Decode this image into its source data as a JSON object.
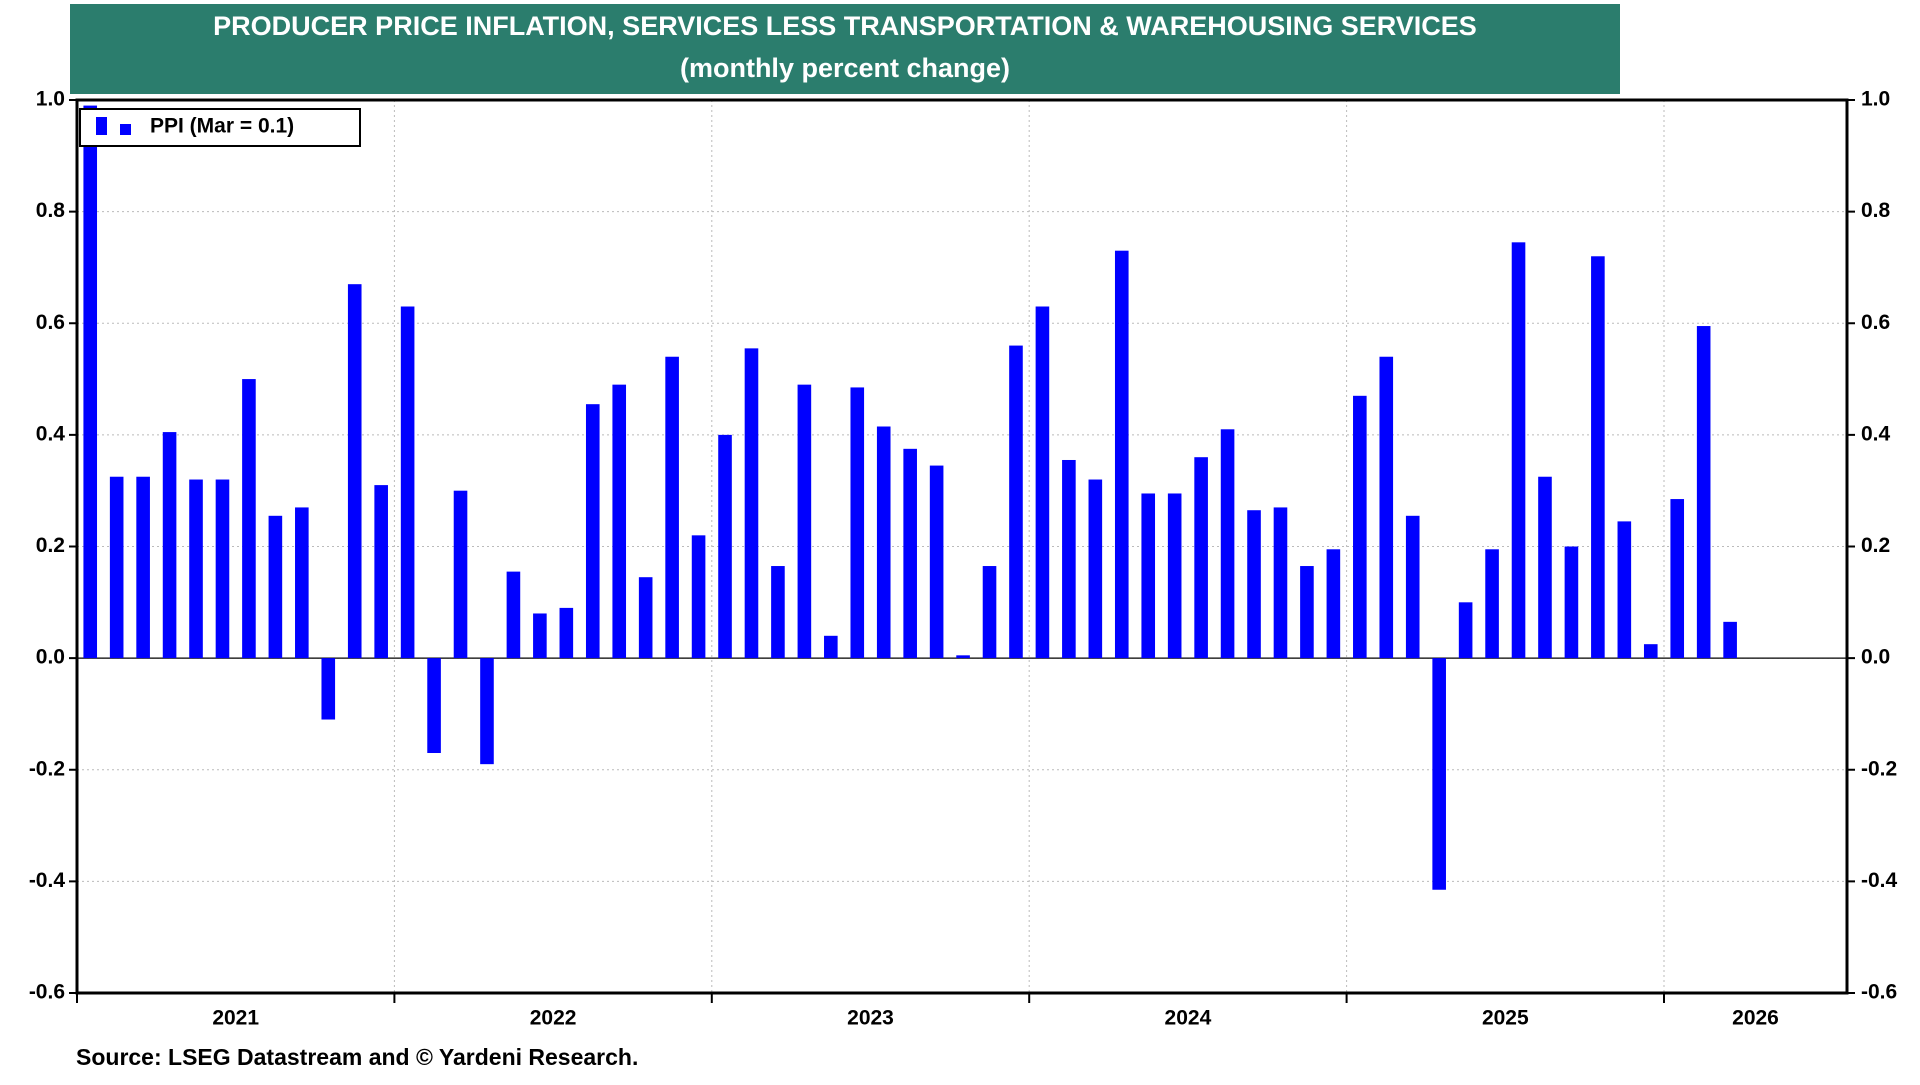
{
  "chart_data": {
    "type": "bar",
    "title": "PRODUCER PRICE INFLATION, SERVICES LESS TRANSPORTATION & WAREHOUSING SERVICES",
    "subtitle": "(monthly percent change)",
    "source": "Source: LSEG Datastream and © Yardeni Research.",
    "x_labels": [
      "2021",
      "2022",
      "2023",
      "2024",
      "2025",
      "2026"
    ],
    "series": [
      {
        "name": "PPI (Mar = 0.1)",
        "color": "#0000ff",
        "values": [
          0.99,
          0.325,
          0.325,
          0.405,
          0.32,
          0.32,
          0.5,
          0.255,
          0.27,
          -0.11,
          0.67,
          0.31,
          0.63,
          -0.17,
          0.3,
          -0.19,
          0.155,
          0.08,
          0.09,
          0.455,
          0.49,
          0.145,
          0.54,
          0.22,
          0.4,
          0.555,
          0.165,
          0.49,
          0.04,
          0.485,
          0.415,
          0.375,
          0.345,
          0.005,
          0.165,
          0.56,
          0.63,
          0.355,
          0.32,
          0.73,
          0.295,
          0.295,
          0.36,
          0.41,
          0.265,
          0.27,
          0.165,
          0.195,
          0.47,
          0.54,
          0.255,
          -0.415,
          0.1,
          0.195,
          0.745,
          0.325,
          0.2,
          0.72,
          0.245,
          0.025,
          0.285,
          0.595,
          0.065
        ]
      }
    ],
    "ylim": [
      -0.6,
      1.0
    ],
    "yticks": [
      -0.6,
      -0.4,
      -0.2,
      {
        "value": 0,
        "label": "0.0"
      },
      0.2,
      0.4,
      0.6,
      0.8,
      {
        "value": 1.0,
        "label": "1.0"
      }
    ],
    "grid": true,
    "legend": "top-left"
  }
}
